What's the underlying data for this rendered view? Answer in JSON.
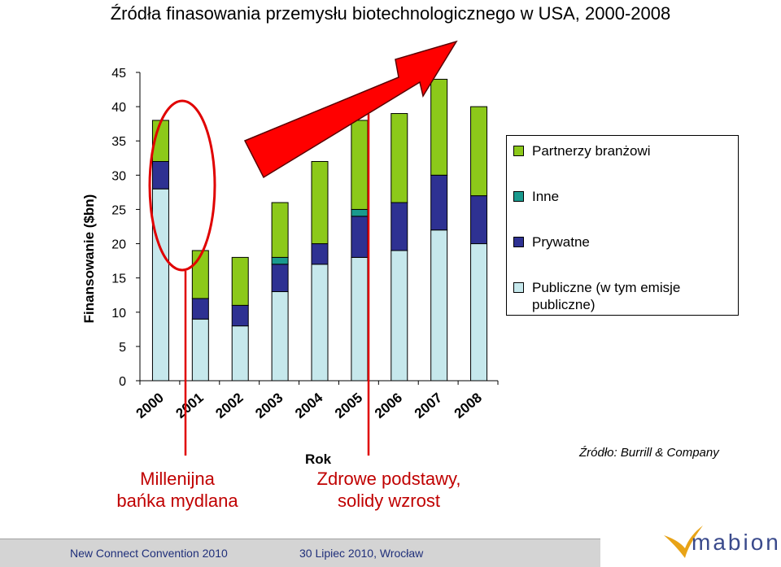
{
  "chart_data": {
    "type": "bar",
    "stacked": true,
    "title": "Źródła finasowania przemysłu biotechnologicznego w USA, 2000-2008",
    "xlabel": "Rok",
    "ylabel": "Finansowanie ($bn)",
    "ylim": [
      0,
      45
    ],
    "yticks": [
      0,
      5,
      10,
      15,
      20,
      25,
      30,
      35,
      40,
      45
    ],
    "categories": [
      "2000",
      "2001",
      "2002",
      "2003",
      "2004",
      "2005",
      "2006",
      "2007",
      "2008"
    ],
    "series": [
      {
        "name": "Publiczne (w tym emisje publiczne)",
        "color": "#c6e8ec",
        "values": [
          28,
          9,
          8,
          13,
          17,
          18,
          19,
          22,
          20
        ]
      },
      {
        "name": "Prywatne",
        "color": "#2e3192",
        "values": [
          4,
          3,
          3,
          4,
          3,
          6,
          7,
          8,
          7
        ]
      },
      {
        "name": "Inne",
        "color": "#1a9a8e",
        "values": [
          0,
          0,
          0,
          1,
          0,
          1,
          0,
          0,
          0
        ]
      },
      {
        "name": "Partnerzy branżowi",
        "color": "#8cc91a",
        "values": [
          6,
          7,
          7,
          8,
          12,
          13,
          13,
          14,
          13
        ]
      }
    ],
    "legend_position": "right",
    "annotations": [
      {
        "text": "Millenijna bańka mydlana",
        "color": "#c00000"
      },
      {
        "text": "Zdrowe podstawy, solidy wzrost",
        "color": "#c00000"
      }
    ]
  },
  "legend": {
    "items": [
      {
        "label": "Partnerzy branżowi",
        "color": "#8cc91a"
      },
      {
        "label": "Inne",
        "color": "#1a9a8e"
      },
      {
        "label": "Prywatne",
        "color": "#2e3192"
      },
      {
        "label": "Publiczne (w tym emisje publiczne)",
        "color": "#c6e8ec"
      }
    ]
  },
  "notes": {
    "bubble_line1": "Millenijna",
    "bubble_line2": "bańka mydlana",
    "growth_line1": "Zdrowe podstawy,",
    "growth_line2": "solidy wzrost"
  },
  "source": "Źródło: Burrill & Company",
  "footer": {
    "left": "New Connect Convention 2010",
    "center": "30 Lipiec  2010, Wrocław"
  },
  "logo": {
    "text": "mabion",
    "accent": "#e8a317",
    "text_color": "#3a4a8c"
  },
  "colors": {
    "annotation_red": "#e00000",
    "footer_bg": "#d4d4d4"
  }
}
